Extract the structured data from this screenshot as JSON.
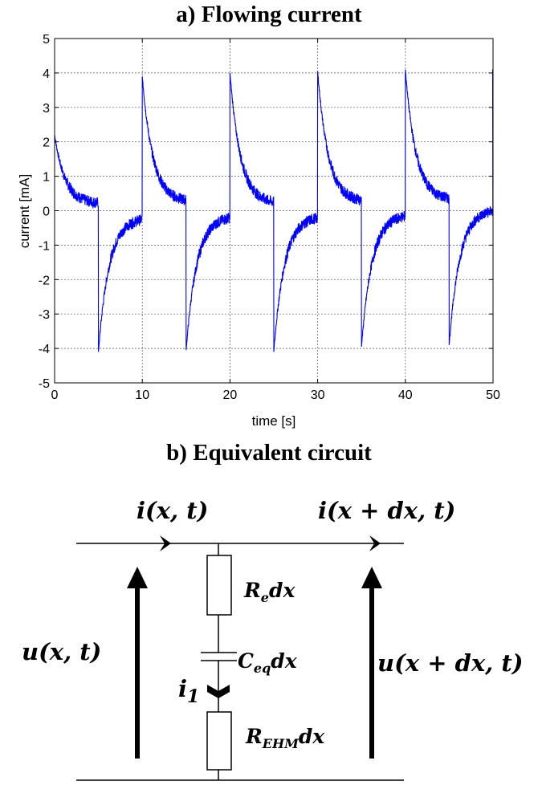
{
  "chart_data": {
    "type": "line",
    "title": "a)   Flowing current",
    "xlabel": "time [s]",
    "ylabel": "current [mA]",
    "xlim": [
      0,
      50
    ],
    "ylim": [
      -5,
      5
    ],
    "xticks": [
      0,
      10,
      20,
      30,
      40,
      50
    ],
    "yticks": [
      5,
      4,
      3,
      2,
      1,
      0,
      -1,
      -2,
      -3,
      -4,
      -5
    ],
    "xtick_labels": [
      "0",
      "10",
      "20",
      "30",
      "40",
      "50"
    ],
    "ytick_labels": [
      "5",
      "4",
      "3",
      "2",
      "1",
      "0",
      "-1",
      "-2",
      "-3",
      "-4",
      "-5"
    ],
    "grid": true,
    "series": [
      {
        "color": "#0000ff",
        "period_s": 10,
        "positive_peaks_mA": [
          2.2,
          3.9,
          4.0,
          4.05,
          4.1,
          4.1
        ],
        "negative_peaks_mA": [
          -4.1,
          -4.05,
          -4.1,
          -3.95,
          -3.9
        ],
        "positive_phase_end_mA": [
          0.2,
          0.25,
          0.2,
          0.25,
          0.3
        ],
        "negative_phase_end_mA": [
          -0.2,
          -0.15,
          -0.15,
          -0.1,
          0.05
        ],
        "time_constant_s": 1.2
      }
    ]
  },
  "circuit": {
    "title": "b)   Equivalent circuit",
    "labels": {
      "i_left": "i(x, t)",
      "i_right": "i(x + dx, t)",
      "u_left": "u(x, t)",
      "u_right": "u(x + dx, t)",
      "r_e_base": "R",
      "r_e_sub": "e",
      "r_e_tail": "dx",
      "c_eq_base": "C",
      "c_eq_sub": "eq",
      "c_eq_tail": "dx",
      "i1_base": "i",
      "i1_sub": "1",
      "r_ehm_base": "R",
      "r_ehm_sub": "EHM",
      "r_ehm_tail": "dx"
    }
  }
}
